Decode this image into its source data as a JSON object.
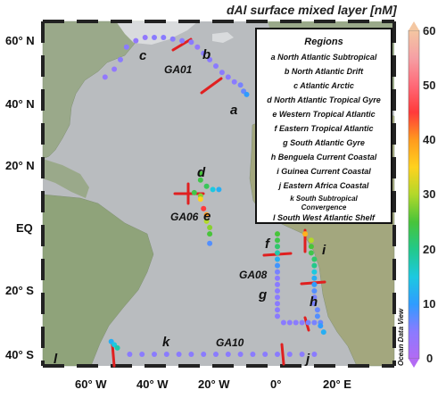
{
  "title": "dAl surface mixed layer [nM]",
  "lat_labels": [
    "60° N",
    "40° N",
    "20° N",
    "EQ",
    "20° S",
    "40° S"
  ],
  "lon_labels": [
    "60° W",
    "40° W",
    "20° W",
    "0°",
    "20° E"
  ],
  "watermark": "Ocean Data View",
  "colorbar": {
    "ticks": [
      "60",
      "50",
      "40",
      "30",
      "20",
      "10",
      "0"
    ],
    "min": 0,
    "max": 60,
    "colors": [
      "#b36bf4",
      "#8a7bff",
      "#2f9cff",
      "#1cc9e0",
      "#22c98a",
      "#48c43a",
      "#b2d82a",
      "#ffd21e",
      "#ff9a1e",
      "#ff3a3a",
      "#ff6a78",
      "#f5a0a4",
      "#f4c7a2"
    ]
  },
  "legend": {
    "header": "Regions",
    "items": [
      "a  North Atlantic Subtropical",
      "b  North Atlantic Drift",
      "c  Atlantic Arctic",
      "d  North Atlantic Tropical Gyre",
      "e  Western Tropical Atlantic",
      "f  Eastern Tropical Atlantic",
      "g  South Atlantic Gyre",
      "h  Benguela Current Coastal",
      "i  Guinea Current Coastal",
      "j  Eastern Africa Coastal",
      "k  South Subtropical",
      "Convergence",
      "l  South West Atlantic Shelf"
    ]
  },
  "region_letters": [
    "a",
    "b",
    "c",
    "d",
    "e",
    "f",
    "g",
    "h",
    "i",
    "j",
    "k",
    "l"
  ],
  "cruises": [
    "GA01",
    "GA06",
    "GA08",
    "GA10"
  ],
  "chart_data": {
    "type": "scatter",
    "variable": "dAl surface mixed layer [nM]",
    "color_range": [
      0,
      60
    ],
    "sections": [
      {
        "name": "GA01",
        "points": [
          {
            "lon": -56,
            "lat": 47.5,
            "v": 4
          },
          {
            "lon": -53,
            "lat": 50,
            "v": 4
          },
          {
            "lon": -51,
            "lat": 53,
            "v": 5
          },
          {
            "lon": -49,
            "lat": 57,
            "v": 5
          },
          {
            "lon": -46,
            "lat": 59,
            "v": 4
          },
          {
            "lon": -43,
            "lat": 60,
            "v": 4
          },
          {
            "lon": -40,
            "lat": 60,
            "v": 5
          },
          {
            "lon": -37,
            "lat": 60,
            "v": 5
          },
          {
            "lon": -34,
            "lat": 59.5,
            "v": 5
          },
          {
            "lon": -31,
            "lat": 59,
            "v": 5
          },
          {
            "lon": -28,
            "lat": 58.5,
            "v": 5
          },
          {
            "lon": -26,
            "lat": 57,
            "v": 4
          },
          {
            "lon": -24,
            "lat": 55,
            "v": 5
          },
          {
            "lon": -22,
            "lat": 53,
            "v": 5
          },
          {
            "lon": -20,
            "lat": 51,
            "v": 5
          },
          {
            "lon": -18,
            "lat": 49,
            "v": 5
          },
          {
            "lon": -16,
            "lat": 47.5,
            "v": 5
          },
          {
            "lon": -14,
            "lat": 46,
            "v": 5
          },
          {
            "lon": -12,
            "lat": 45,
            "v": 6
          },
          {
            "lon": -11,
            "lat": 43,
            "v": 7
          },
          {
            "lon": -10,
            "lat": 42,
            "v": 10
          }
        ]
      },
      {
        "name": "GA06",
        "points": [
          {
            "lon": -25,
            "lat": 17,
            "v": 25
          },
          {
            "lon": -25,
            "lat": 15,
            "v": 24
          },
          {
            "lon": -23,
            "lat": 13,
            "v": 23
          },
          {
            "lon": -21,
            "lat": 12,
            "v": 15
          },
          {
            "lon": -19,
            "lat": 12,
            "v": 12
          },
          {
            "lon": -27,
            "lat": 11,
            "v": 24
          },
          {
            "lon": -25,
            "lat": 10,
            "v": 28
          },
          {
            "lon": -25,
            "lat": 9,
            "v": 35
          },
          {
            "lon": -24,
            "lat": 6,
            "v": 45
          },
          {
            "lon": -23,
            "lat": 4,
            "v": 40
          },
          {
            "lon": -23,
            "lat": 2,
            "v": 30
          },
          {
            "lon": -22,
            "lat": 0,
            "v": 28
          },
          {
            "lon": -22,
            "lat": -2,
            "v": 25
          },
          {
            "lon": -22,
            "lat": -5,
            "v": 8
          }
        ]
      },
      {
        "name": "GA08",
        "points": [
          {
            "lon": 0,
            "lat": -2,
            "v": 25
          },
          {
            "lon": 0,
            "lat": -4,
            "v": 24
          },
          {
            "lon": 0,
            "lat": -6,
            "v": 22
          },
          {
            "lon": 0,
            "lat": -8,
            "v": 18
          },
          {
            "lon": 0,
            "lat": -10,
            "v": 12
          },
          {
            "lon": 0,
            "lat": -12,
            "v": 9
          },
          {
            "lon": 0,
            "lat": -14,
            "v": 6
          },
          {
            "lon": 0,
            "lat": -16,
            "v": 5
          },
          {
            "lon": 0,
            "lat": -18,
            "v": 5
          },
          {
            "lon": 0,
            "lat": -20,
            "v": 5
          },
          {
            "lon": 0,
            "lat": -22,
            "v": 5
          },
          {
            "lon": 0,
            "lat": -24,
            "v": 5
          },
          {
            "lon": 0,
            "lat": -26,
            "v": 5
          },
          {
            "lon": 0,
            "lat": -28,
            "v": 5
          },
          {
            "lon": 2,
            "lat": -30,
            "v": 5
          },
          {
            "lon": 4,
            "lat": -30,
            "v": 5
          },
          {
            "lon": 6,
            "lat": -30,
            "v": 5
          },
          {
            "lon": 8,
            "lat": -30,
            "v": 5
          },
          {
            "lon": 10,
            "lat": -30,
            "v": 6
          },
          {
            "lon": 12,
            "lat": -30,
            "v": 6
          },
          {
            "lon": 14,
            "lat": -30,
            "v": 7
          },
          {
            "lon": 5,
            "lat": 3,
            "v": 50
          },
          {
            "lon": 7,
            "lat": 2,
            "v": 45
          },
          {
            "lon": 9,
            "lat": -2,
            "v": 38
          },
          {
            "lon": 11,
            "lat": -4,
            "v": 30
          },
          {
            "lon": 11,
            "lat": -6,
            "v": 25
          },
          {
            "lon": 11,
            "lat": -8,
            "v": 24
          },
          {
            "lon": 12,
            "lat": -10,
            "v": 22
          },
          {
            "lon": 12,
            "lat": -12,
            "v": 20
          },
          {
            "lon": 12,
            "lat": -14,
            "v": 15
          },
          {
            "lon": 12,
            "lat": -16,
            "v": 12
          },
          {
            "lon": 12,
            "lat": -18,
            "v": 10
          },
          {
            "lon": 12,
            "lat": -20,
            "v": 8
          },
          {
            "lon": 12,
            "lat": -22,
            "v": 6
          },
          {
            "lon": 12,
            "lat": -24,
            "v": 6
          },
          {
            "lon": 13,
            "lat": -26,
            "v": 7
          },
          {
            "lon": 13,
            "lat": -28,
            "v": 8
          },
          {
            "lon": 14,
            "lat": -31,
            "v": 10
          },
          {
            "lon": 15,
            "lat": -33,
            "v": 12
          }
        ]
      },
      {
        "name": "GA10",
        "points": [
          {
            "lon": -54,
            "lat": -36,
            "v": 12
          },
          {
            "lon": -53,
            "lat": -37,
            "v": 15
          },
          {
            "lon": -52,
            "lat": -38,
            "v": 18
          },
          {
            "lon": -48,
            "lat": -40,
            "v": 5
          },
          {
            "lon": -44,
            "lat": -40,
            "v": 5
          },
          {
            "lon": -40,
            "lat": -40,
            "v": 5
          },
          {
            "lon": -36,
            "lat": -40,
            "v": 5
          },
          {
            "lon": -32,
            "lat": -40,
            "v": 5
          },
          {
            "lon": -28,
            "lat": -40,
            "v": 5
          },
          {
            "lon": -24,
            "lat": -40,
            "v": 5
          },
          {
            "lon": -20,
            "lat": -40,
            "v": 5
          },
          {
            "lon": -16,
            "lat": -40,
            "v": 5
          },
          {
            "lon": -12,
            "lat": -40,
            "v": 5
          },
          {
            "lon": -8,
            "lat": -40,
            "v": 5
          },
          {
            "lon": -4,
            "lat": -40,
            "v": 5
          },
          {
            "lon": 0,
            "lat": -40,
            "v": 5
          },
          {
            "lon": 4,
            "lat": -40,
            "v": 5
          },
          {
            "lon": 8,
            "lat": -40,
            "v": 5
          },
          {
            "lon": 12,
            "lat": -40,
            "v": 5
          }
        ]
      }
    ]
  }
}
